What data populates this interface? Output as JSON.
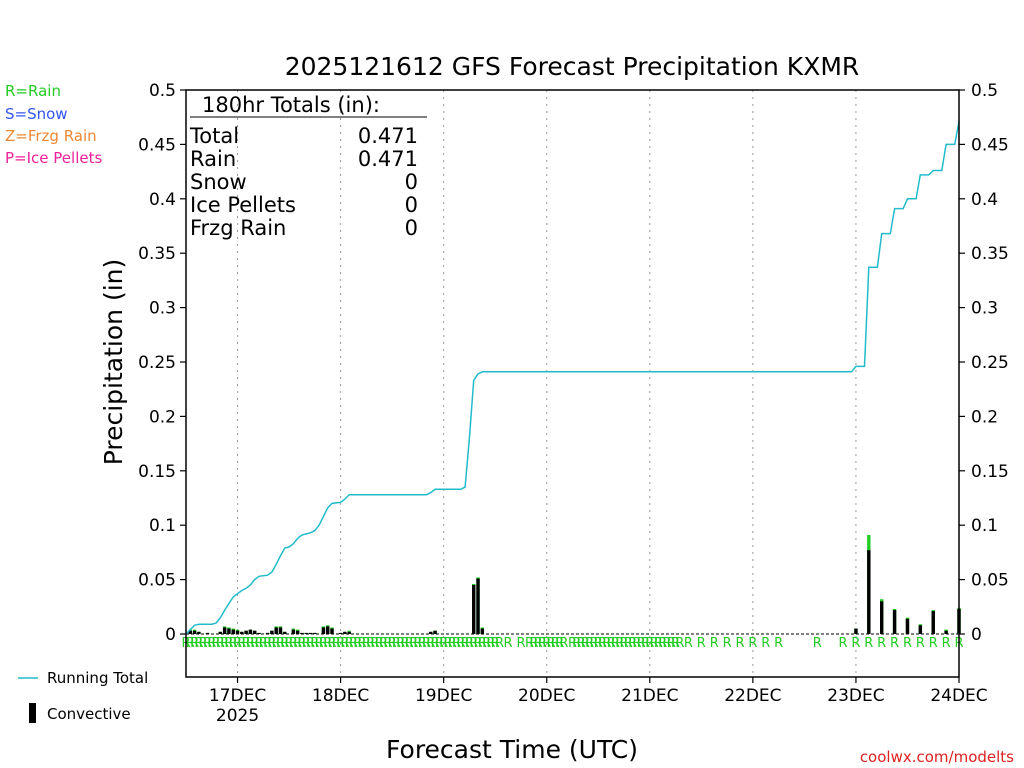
{
  "chart_data": {
    "type": "bar+line",
    "title": "2025121612 GFS Forecast Precipitation KXMR",
    "xlabel": "Forecast Time (UTC)",
    "ylabel": "Precipitation (in)",
    "ylim": [
      0,
      0.5
    ],
    "yticks": [
      "0",
      "0.05",
      "0.1",
      "0.15",
      "0.2",
      "0.25",
      "0.3",
      "0.35",
      "0.4",
      "0.45",
      "0.5"
    ],
    "xlim_forecast_hours": [
      0,
      180
    ],
    "xticks": [
      {
        "hour": 12,
        "label": "17DEC",
        "sublabel": "2025"
      },
      {
        "hour": 36,
        "label": "18DEC",
        "sublabel": ""
      },
      {
        "hour": 60,
        "label": "19DEC",
        "sublabel": ""
      },
      {
        "hour": 84,
        "label": "20DEC",
        "sublabel": ""
      },
      {
        "hour": 108,
        "label": "21DEC",
        "sublabel": ""
      },
      {
        "hour": 132,
        "label": "22DEC",
        "sublabel": ""
      },
      {
        "hour": 156,
        "label": "23DEC",
        "sublabel": ""
      },
      {
        "hour": 180,
        "label": "24DEC",
        "sublabel": ""
      }
    ],
    "grid": "vertical dotted at day boundaries",
    "precip_type_legend": [
      {
        "label": "R=Rain",
        "color": "#22cc22"
      },
      {
        "label": "S=Snow",
        "color": "#3355ee"
      },
      {
        "label": "Z=Frzg Rain",
        "color": "#ee8833"
      },
      {
        "label": "P=Ice Pellets",
        "color": "#ee2299"
      }
    ],
    "totals": {
      "header": "180hr Totals (in):",
      "rows": [
        {
          "label": "Total",
          "value": "0.471"
        },
        {
          "label": "Rain",
          "value": "0.471"
        },
        {
          "label": "Snow",
          "value": "0"
        },
        {
          "label": "Ice Pellets",
          "value": "0"
        },
        {
          "label": "Frzg Rain",
          "value": "0"
        }
      ]
    },
    "series": [
      {
        "name": "Running Total",
        "type": "line",
        "color": "#22bbcc",
        "points": [
          [
            0,
            0
          ],
          [
            1,
            0.004
          ],
          [
            2,
            0.008
          ],
          [
            3,
            0.009
          ],
          [
            6,
            0.009
          ],
          [
            7,
            0.01
          ],
          [
            8,
            0.015
          ],
          [
            9,
            0.022
          ],
          [
            10,
            0.028
          ],
          [
            11,
            0.034
          ],
          [
            12,
            0.037
          ],
          [
            13,
            0.04
          ],
          [
            14,
            0.042
          ],
          [
            15,
            0.045
          ],
          [
            16,
            0.05
          ],
          [
            17,
            0.053
          ],
          [
            19,
            0.054
          ],
          [
            20,
            0.057
          ],
          [
            21,
            0.064
          ],
          [
            22,
            0.072
          ],
          [
            23,
            0.079
          ],
          [
            24,
            0.08
          ],
          [
            25,
            0.083
          ],
          [
            26,
            0.088
          ],
          [
            27,
            0.091
          ],
          [
            28,
            0.092
          ],
          [
            29,
            0.093
          ],
          [
            30,
            0.095
          ],
          [
            31,
            0.1
          ],
          [
            32,
            0.108
          ],
          [
            33,
            0.116
          ],
          [
            34,
            0.12
          ],
          [
            36,
            0.121
          ],
          [
            37,
            0.124
          ],
          [
            38,
            0.128
          ],
          [
            56,
            0.128
          ],
          [
            57,
            0.13
          ],
          [
            58,
            0.133
          ],
          [
            64,
            0.133
          ],
          [
            65,
            0.135
          ],
          [
            66,
            0.18
          ],
          [
            67,
            0.233
          ],
          [
            68,
            0.239
          ],
          [
            69,
            0.241
          ],
          [
            155,
            0.241
          ],
          [
            156,
            0.246
          ],
          [
            158,
            0.246
          ],
          [
            159,
            0.337
          ],
          [
            161,
            0.337
          ],
          [
            162,
            0.368
          ],
          [
            164,
            0.368
          ],
          [
            165,
            0.391
          ],
          [
            167,
            0.391
          ],
          [
            168,
            0.4
          ],
          [
            170,
            0.4
          ],
          [
            171,
            0.422
          ],
          [
            173,
            0.422
          ],
          [
            174,
            0.426
          ],
          [
            176,
            0.426
          ],
          [
            177,
            0.45
          ],
          [
            179,
            0.45
          ],
          [
            180,
            0.471
          ]
        ]
      },
      {
        "name": "Convective",
        "type": "bar",
        "color": "#000000",
        "points": [
          [
            1,
            0.003
          ],
          [
            2,
            0.003
          ],
          [
            3,
            0.002
          ],
          [
            5,
            0.001
          ],
          [
            8,
            0.002
          ],
          [
            9,
            0.006
          ],
          [
            10,
            0.005
          ],
          [
            11,
            0.004
          ],
          [
            12,
            0.003
          ],
          [
            13,
            0.002
          ],
          [
            14,
            0.003
          ],
          [
            15,
            0.004
          ],
          [
            16,
            0.003
          ],
          [
            17,
            0.001
          ],
          [
            19,
            0.001
          ],
          [
            20,
            0.003
          ],
          [
            21,
            0.006
          ],
          [
            22,
            0.006
          ],
          [
            23,
            0.002
          ],
          [
            25,
            0.004
          ],
          [
            26,
            0.003
          ],
          [
            27,
            0.001
          ],
          [
            28,
            0.001
          ],
          [
            29,
            0.001
          ],
          [
            30,
            0.001
          ],
          [
            32,
            0.006
          ],
          [
            33,
            0.007
          ],
          [
            34,
            0.005
          ],
          [
            36,
            0.001
          ],
          [
            37,
            0.002
          ],
          [
            38,
            0.002
          ],
          [
            57,
            0.002
          ],
          [
            58,
            0.003
          ],
          [
            67,
            0.045
          ],
          [
            68,
            0.051
          ],
          [
            69,
            0.005
          ],
          [
            156,
            0.005
          ],
          [
            159,
            0.077
          ],
          [
            162,
            0.03
          ],
          [
            165,
            0.022
          ],
          [
            168,
            0.014
          ],
          [
            171,
            0.008
          ],
          [
            174,
            0.021
          ],
          [
            177,
            0.003
          ],
          [
            180,
            0.023
          ]
        ]
      },
      {
        "name": "Rain",
        "type": "bar",
        "color": "#22cc22",
        "points": [
          [
            1,
            0.004
          ],
          [
            2,
            0.004
          ],
          [
            3,
            0.002
          ],
          [
            5,
            0.001
          ],
          [
            8,
            0.002
          ],
          [
            9,
            0.007
          ],
          [
            10,
            0.006
          ],
          [
            11,
            0.005
          ],
          [
            12,
            0.004
          ],
          [
            13,
            0.002
          ],
          [
            14,
            0.003
          ],
          [
            15,
            0.004
          ],
          [
            16,
            0.003
          ],
          [
            17,
            0.001
          ],
          [
            19,
            0.001
          ],
          [
            20,
            0.003
          ],
          [
            21,
            0.007
          ],
          [
            22,
            0.007
          ],
          [
            23,
            0.002
          ],
          [
            25,
            0.005
          ],
          [
            26,
            0.004
          ],
          [
            27,
            0.001
          ],
          [
            28,
            0.001
          ],
          [
            29,
            0.001
          ],
          [
            30,
            0.001
          ],
          [
            32,
            0.007
          ],
          [
            33,
            0.008
          ],
          [
            34,
            0.006
          ],
          [
            36,
            0.001
          ],
          [
            37,
            0.002
          ],
          [
            38,
            0.003
          ],
          [
            57,
            0.002
          ],
          [
            58,
            0.003
          ],
          [
            67,
            0.046
          ],
          [
            68,
            0.052
          ],
          [
            69,
            0.006
          ],
          [
            156,
            0.005
          ],
          [
            159,
            0.091
          ],
          [
            162,
            0.032
          ],
          [
            165,
            0.023
          ],
          [
            168,
            0.015
          ],
          [
            171,
            0.009
          ],
          [
            174,
            0.022
          ],
          [
            177,
            0.004
          ],
          [
            180,
            0.024
          ]
        ]
      }
    ],
    "precip_type_markers": {
      "label": "R",
      "color": "#22cc22",
      "hours": [
        0,
        1,
        2,
        3,
        4,
        5,
        6,
        7,
        8,
        9,
        10,
        11,
        12,
        13,
        14,
        15,
        16,
        17,
        18,
        19,
        20,
        21,
        22,
        23,
        24,
        25,
        26,
        27,
        28,
        29,
        30,
        31,
        32,
        33,
        34,
        35,
        36,
        37,
        38,
        39,
        40,
        41,
        42,
        43,
        44,
        45,
        46,
        47,
        48,
        49,
        50,
        51,
        52,
        53,
        54,
        55,
        56,
        57,
        58,
        59,
        60,
        61,
        62,
        63,
        64,
        65,
        66,
        67,
        68,
        69,
        70,
        71,
        72,
        73,
        75,
        78,
        80,
        81,
        82,
        83,
        84,
        85,
        86,
        87,
        88,
        90,
        91,
        92,
        93,
        94,
        95,
        96,
        97,
        98,
        99,
        100,
        101,
        102,
        103,
        104,
        105,
        106,
        107,
        108,
        109,
        110,
        111,
        112,
        113,
        114,
        115,
        117,
        120,
        123,
        126,
        129,
        132,
        135,
        138,
        147,
        153,
        156,
        159,
        162,
        165,
        168,
        171,
        174,
        177,
        180
      ]
    },
    "legend": [
      {
        "label": "Running Total",
        "color": "#22bbcc"
      },
      {
        "label": "Convective",
        "color": "#000000"
      }
    ],
    "footer": "coolwx.com/modelts"
  }
}
